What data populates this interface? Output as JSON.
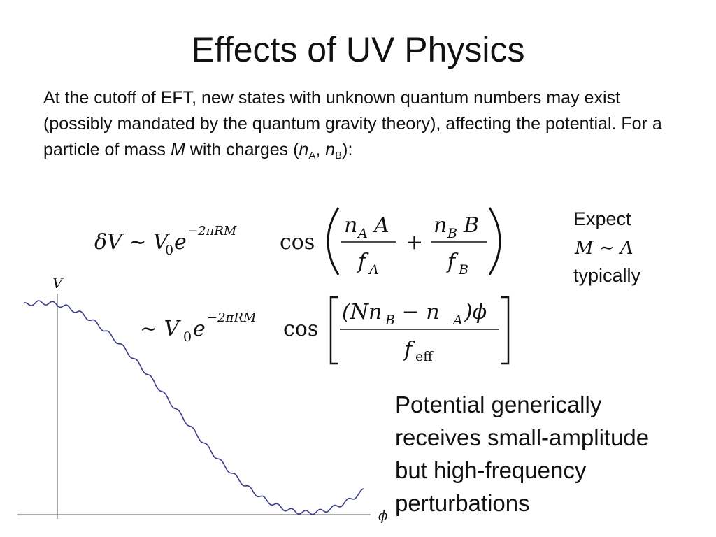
{
  "title": "Effects of UV Physics",
  "intro": [
    "At the cutoff of EFT, new states with unknown quantum numbers may exist (possibly mandated by the quantum gravity theory), affecting the potential. For a particle of mass ",
    "M",
    " with charges (",
    "n",
    "A",
    ", ",
    "n",
    "B",
    "):"
  ],
  "equation1": {
    "lhs": "δV ∼ V",
    "lhs_sub": "0",
    "base": "e",
    "exponent": "−2πRM",
    "func": "cos",
    "frac1_num": "n",
    "frac1_num_sub": "A",
    "frac1_num_tail": "A",
    "frac1_den": "f",
    "frac1_den_sub": "A",
    "plus": "+",
    "frac2_num": "n",
    "frac2_num_sub": "B",
    "frac2_num_tail": "B",
    "frac2_den": "f",
    "frac2_den_sub": "B"
  },
  "equation2": {
    "lhs": "∼ V",
    "lhs_sub": "0",
    "base": "e",
    "exponent": "−2πRM",
    "func": "cos",
    "num": "(Nn",
    "num_sub": "B",
    "num_tail": " − n",
    "num_sub2": "A",
    "num_tail2": ")ϕ",
    "den": "f",
    "den_sub": "eff"
  },
  "expect": {
    "line1": "Expect",
    "math": "M ∼ Λ",
    "line2": "typically"
  },
  "caption": [
    "Potential generically",
    "receives small-amplitude",
    "but high-frequency",
    "perturbations"
  ],
  "plot": {
    "y_label": "V",
    "x_label": "ϕ"
  }
}
